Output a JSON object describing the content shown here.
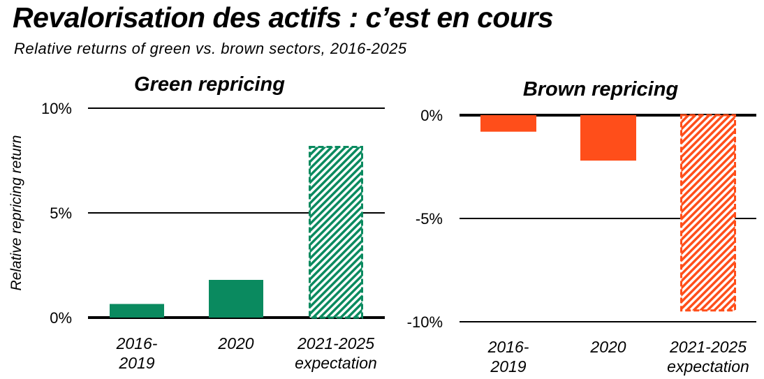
{
  "header": {
    "title": "Revalorisation des actifs : c’est en cours",
    "subtitle": "Relative returns of green vs. brown sectors, 2016-2025"
  },
  "colors": {
    "green": "#0a8a5f",
    "brown": "#ff4e1a",
    "axis": "#000000"
  },
  "chart_data": [
    {
      "type": "bar",
      "title": "Green repricing",
      "ylabel": "Relative repricing return",
      "categories": [
        [
          "2016-",
          "2019"
        ],
        [
          "2020"
        ],
        [
          "2021-2025",
          "expectation"
        ]
      ],
      "values": [
        0.65,
        1.8,
        8.2
      ],
      "hatched": [
        false,
        false,
        true
      ],
      "ylim": [
        0,
        10
      ],
      "yticks": [
        0,
        5,
        10
      ],
      "ytick_labels": [
        "0%",
        "5%",
        "10%"
      ],
      "color": "#0a8a5f",
      "grid": true
    },
    {
      "type": "bar",
      "title": "Brown repricing",
      "ylabel": "",
      "categories": [
        [
          "2016-",
          "2019"
        ],
        [
          "2020"
        ],
        [
          "2021-2025",
          "expectation"
        ]
      ],
      "values": [
        -0.8,
        -2.2,
        -9.5
      ],
      "hatched": [
        false,
        false,
        true
      ],
      "ylim": [
        -10,
        0
      ],
      "yticks": [
        0,
        -5,
        -10
      ],
      "ytick_labels": [
        "0%",
        "-5%",
        "-10%"
      ],
      "color": "#ff4e1a",
      "grid": true
    }
  ]
}
